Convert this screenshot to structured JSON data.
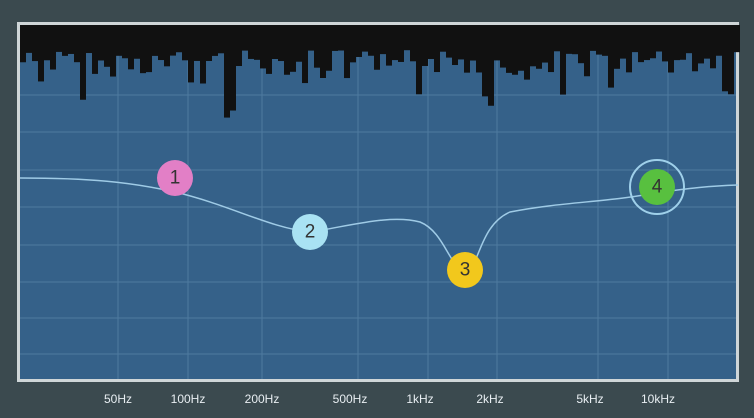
{
  "axis": {
    "labels": [
      "50Hz",
      "100Hz",
      "200Hz",
      "500Hz",
      "1kHz",
      "2kHz",
      "5kHz",
      "10kHz"
    ]
  },
  "nodes": [
    {
      "label": "1"
    },
    {
      "label": "2"
    },
    {
      "label": "3"
    },
    {
      "label": "4"
    }
  ]
}
